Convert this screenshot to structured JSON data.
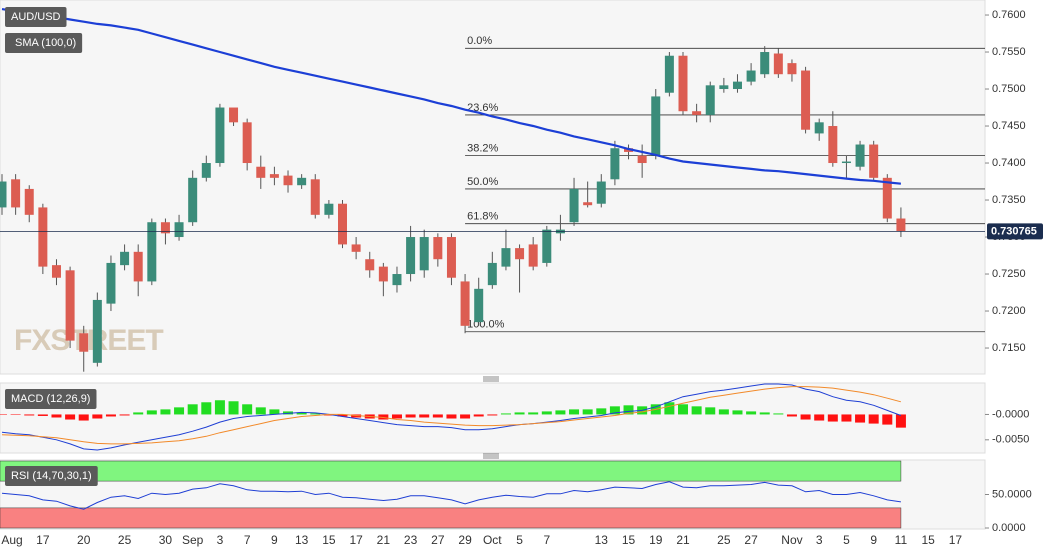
{
  "chart_data": [
    {
      "type": "candlestick",
      "title": "AUD/USD",
      "watermark": "FXSTREET",
      "up_color": "#3b8c7a",
      "down_color": "#dc5d52",
      "categories": [
        "Aug",
        null,
        null,
        "17",
        null,
        null,
        "20",
        null,
        null,
        "25",
        null,
        null,
        "30",
        null,
        "Sep",
        null,
        "3",
        null,
        "7",
        null,
        "9",
        null,
        "13",
        null,
        "15",
        null,
        "17",
        null,
        "21",
        null,
        "23",
        null,
        "27",
        null,
        "29",
        null,
        "Oct",
        null,
        "5",
        null,
        "7",
        null,
        null,
        null,
        "13",
        null,
        "15",
        null,
        "19",
        null,
        "21",
        null,
        null,
        "25",
        null,
        "27",
        null,
        null,
        "Nov",
        null,
        "3",
        null,
        "5",
        null,
        "9",
        null,
        "11",
        null,
        "15",
        null,
        "17",
        null
      ],
      "open": [
        0.734,
        0.7378,
        0.7365,
        0.734,
        0.7262,
        0.7255,
        0.717,
        0.713,
        0.721,
        0.7262,
        0.728,
        0.724,
        0.732,
        0.73,
        0.732,
        0.738,
        0.74,
        0.7475,
        0.7455,
        0.7395,
        0.7385,
        0.7383,
        0.737,
        0.7378,
        0.733,
        0.7345,
        0.729,
        0.727,
        0.726,
        0.7235,
        0.725,
        0.7255,
        0.73,
        0.73,
        0.724,
        0.7185,
        0.7235,
        0.726,
        0.7285,
        0.729,
        0.7265,
        0.7305,
        0.732,
        0.7347,
        0.7345,
        0.7378,
        0.742,
        0.741,
        0.741,
        0.7495,
        0.7545,
        0.747,
        0.7465,
        0.75,
        0.75,
        0.751,
        0.752,
        0.7548,
        0.7535,
        0.7525,
        0.744,
        0.745,
        0.74,
        0.7395,
        0.7425,
        0.738,
        0.7325,
        null,
        null,
        null,
        null,
        null
      ],
      "high": [
        0.7385,
        0.7385,
        0.737,
        0.7345,
        0.727,
        0.726,
        0.718,
        0.7225,
        0.7275,
        0.729,
        0.729,
        0.7325,
        0.7325,
        0.733,
        0.739,
        0.741,
        0.748,
        0.747,
        0.746,
        0.741,
        0.7395,
        0.739,
        0.7385,
        0.7385,
        0.735,
        0.735,
        0.73,
        0.728,
        0.7265,
        0.726,
        0.7315,
        0.731,
        0.7305,
        0.7305,
        0.725,
        0.7245,
        0.728,
        0.731,
        0.729,
        0.73,
        0.7315,
        0.733,
        0.738,
        0.7375,
        0.7385,
        0.743,
        0.7425,
        0.7425,
        0.75,
        0.755,
        0.755,
        0.748,
        0.751,
        0.7515,
        0.752,
        0.7535,
        0.7558,
        0.7555,
        0.754,
        0.753,
        0.746,
        0.747,
        0.741,
        0.743,
        0.743,
        0.7385,
        0.734,
        null,
        null,
        null,
        null,
        null
      ],
      "low": [
        0.733,
        0.733,
        0.732,
        0.725,
        0.7235,
        0.715,
        0.7118,
        0.7125,
        0.72,
        0.7255,
        0.722,
        0.7235,
        0.729,
        0.7295,
        0.7315,
        0.7375,
        0.7395,
        0.745,
        0.739,
        0.7365,
        0.737,
        0.736,
        0.7365,
        0.7325,
        0.7325,
        0.7285,
        0.727,
        0.7245,
        0.722,
        0.7225,
        0.724,
        0.7245,
        0.726,
        0.7235,
        0.717,
        0.718,
        0.723,
        0.7255,
        0.7225,
        0.7255,
        0.726,
        0.7295,
        0.7315,
        0.734,
        0.734,
        0.737,
        0.7405,
        0.738,
        0.7405,
        0.749,
        0.7465,
        0.7455,
        0.7455,
        0.7495,
        0.7495,
        0.7505,
        0.7515,
        0.7515,
        0.751,
        0.744,
        0.743,
        0.7395,
        0.738,
        0.739,
        0.7375,
        0.732,
        0.73,
        null,
        null,
        null,
        null,
        null
      ],
      "close": [
        0.7375,
        0.734,
        0.733,
        0.726,
        0.7245,
        0.716,
        0.7145,
        0.7215,
        0.7265,
        0.728,
        0.724,
        0.732,
        0.7305,
        0.732,
        0.738,
        0.74,
        0.7475,
        0.7455,
        0.74,
        0.738,
        0.738,
        0.737,
        0.738,
        0.733,
        0.7345,
        0.729,
        0.728,
        0.7255,
        0.724,
        0.725,
        0.73,
        0.73,
        0.727,
        0.7245,
        0.718,
        0.723,
        0.7265,
        0.7285,
        0.727,
        0.726,
        0.731,
        0.731,
        0.7365,
        0.7343,
        0.7375,
        0.742,
        0.7415,
        0.74,
        0.749,
        0.7545,
        0.747,
        0.7465,
        0.7505,
        0.7505,
        0.751,
        0.7525,
        0.755,
        0.752,
        0.752,
        0.7445,
        0.7455,
        0.74,
        0.7402,
        0.7425,
        0.738,
        0.7325,
        0.730765,
        null,
        null,
        null,
        null,
        null
      ],
      "overlays": [
        {
          "name": "SMA (100,0)",
          "color": "#1c3fd6",
          "values": [
            0.7608,
            0.7605,
            0.7602,
            0.76,
            0.7597,
            0.7594,
            0.7591,
            0.7588,
            0.7586,
            0.7583,
            0.758,
            0.7575,
            0.757,
            0.7565,
            0.756,
            0.7555,
            0.755,
            0.7545,
            0.754,
            0.7535,
            0.753,
            0.7526,
            0.7522,
            0.7518,
            0.7514,
            0.751,
            0.7506,
            0.7502,
            0.7498,
            0.7494,
            0.749,
            0.7486,
            0.7481,
            0.7477,
            0.7472,
            0.7468,
            0.7463,
            0.7459,
            0.7454,
            0.745,
            0.7445,
            0.7441,
            0.7436,
            0.7432,
            0.7428,
            0.7424,
            0.7419,
            0.7415,
            0.7411,
            0.7406,
            0.7402,
            0.74,
            0.7398,
            0.7396,
            0.7394,
            0.7392,
            0.739,
            0.7389,
            0.7387,
            0.7385,
            0.7383,
            0.7381,
            0.7379,
            0.7377,
            0.7376,
            0.7374,
            0.7372,
            null,
            null,
            null,
            null,
            null
          ]
        }
      ],
      "levels": [
        {
          "label": "0.0%",
          "value": 0.7555
        },
        {
          "label": "23.6%",
          "value": 0.7465
        },
        {
          "label": "38.2%",
          "value": 0.741
        },
        {
          "label": "50.0%",
          "value": 0.7365
        },
        {
          "label": "61.8%",
          "value": 0.7318
        },
        {
          "label": "100.0%",
          "value": 0.7172
        }
      ],
      "ylim": [
        0.71149,
        0.76203
      ],
      "yticks": [
        {
          "value": 0.715,
          "label": "0.7150"
        },
        {
          "value": 0.72,
          "label": "0.7200"
        },
        {
          "value": 0.725,
          "label": "0.7250"
        },
        {
          "value": 0.73,
          "label": "0.7300"
        },
        {
          "value": 0.735,
          "label": "0.7350"
        },
        {
          "value": 0.74,
          "label": "0.7400"
        },
        {
          "value": 0.745,
          "label": "0.7450"
        },
        {
          "value": 0.75,
          "label": "0.7500"
        },
        {
          "value": 0.755,
          "label": "0.7550"
        },
        {
          "value": 0.76,
          "label": "0.7600"
        }
      ]
    },
    {
      "type": "macd",
      "title": "MACD (12,26,9)",
      "up_color": "#22dd22",
      "down_color": "#ff1111",
      "histogram": [
        -0.0001,
        -0.0001,
        -0.0002,
        -0.0003,
        -0.0006,
        -0.001,
        -0.0012,
        -0.0008,
        -0.0004,
        -0.0002,
        0.0004,
        0.0008,
        0.001,
        0.0014,
        0.002,
        0.0024,
        0.0028,
        0.0026,
        0.002,
        0.0014,
        0.001,
        0.0006,
        0.0004,
        0.0002,
        -0.0002,
        -0.0004,
        -0.0006,
        -0.0008,
        -0.001,
        -0.0008,
        -0.0006,
        -0.0006,
        -0.0006,
        -0.0008,
        -0.0008,
        -0.0004,
        -0.0002,
        0.0002,
        0.0004,
        0.0004,
        0.0006,
        0.0008,
        0.001,
        0.001,
        0.0012,
        0.0016,
        0.0018,
        0.0016,
        0.002,
        0.0024,
        0.002,
        0.0016,
        0.0014,
        0.001,
        0.0008,
        0.0006,
        0.0004,
        0.0002,
        -0.0004,
        -0.001,
        -0.0012,
        -0.0014,
        -0.0014,
        -0.0016,
        -0.0018,
        -0.002,
        -0.0026,
        null,
        null,
        null,
        null,
        null
      ],
      "lines": [
        {
          "color": "#1f3fd4",
          "values": [
            -0.0035,
            -0.0038,
            -0.004,
            -0.0045,
            -0.005,
            -0.0058,
            -0.0068,
            -0.007,
            -0.0066,
            -0.006,
            -0.0055,
            -0.005,
            -0.0045,
            -0.004,
            -0.0033,
            -0.0025,
            -0.0015,
            -0.0008,
            -0.0004,
            -0.0002,
            0.0,
            0.0002,
            0.0004,
            0.0003,
            0.0,
            -0.0004,
            -0.0008,
            -0.0012,
            -0.0016,
            -0.002,
            -0.0022,
            -0.0024,
            -0.0024,
            -0.0026,
            -0.003,
            -0.003,
            -0.0028,
            -0.0024,
            -0.002,
            -0.0018,
            -0.0015,
            -0.0012,
            -0.0008,
            -0.0005,
            -0.0002,
            0.0003,
            0.0006,
            0.0008,
            0.0015,
            0.0025,
            0.0035,
            0.004,
            0.0045,
            0.0048,
            0.0052,
            0.0056,
            0.006,
            0.006,
            0.0058,
            0.005,
            0.0045,
            0.0035,
            0.0028,
            0.0025,
            0.0018,
            0.0008,
            -0.0002,
            null,
            null,
            null,
            null,
            null
          ]
        },
        {
          "color": "#f28a2a",
          "values": [
            -0.004,
            -0.0041,
            -0.0042,
            -0.0044,
            -0.0046,
            -0.005,
            -0.0054,
            -0.0057,
            -0.0058,
            -0.0058,
            -0.0057,
            -0.0056,
            -0.0054,
            -0.0052,
            -0.0048,
            -0.0043,
            -0.0036,
            -0.003,
            -0.0024,
            -0.0018,
            -0.0012,
            -0.0008,
            -0.0004,
            -0.0002,
            0.0,
            0.0,
            -0.0002,
            -0.0004,
            -0.0006,
            -0.001,
            -0.0012,
            -0.0015,
            -0.0017,
            -0.0019,
            -0.0021,
            -0.0022,
            -0.0022,
            -0.0021,
            -0.002,
            -0.0018,
            -0.0016,
            -0.0014,
            -0.0011,
            -0.0008,
            -0.0005,
            -0.0002,
            0.0002,
            0.0005,
            0.001,
            0.0016,
            0.0022,
            0.0028,
            0.0034,
            0.0038,
            0.0042,
            0.0046,
            0.005,
            0.0053,
            0.0055,
            0.0055,
            0.0054,
            0.0052,
            0.0048,
            0.0044,
            0.0039,
            0.0032,
            0.0025,
            null,
            null,
            null,
            null,
            null
          ]
        }
      ],
      "ylim": [
        -0.0076,
        0.0062
      ],
      "yticks": [
        {
          "value": 0,
          "label": "-0.0000"
        },
        {
          "value": -0.005,
          "label": "-0.0050"
        }
      ]
    },
    {
      "type": "rsi",
      "title": "RSI (14,70,30,1)",
      "color": "#1f3fd4",
      "bands": [
        {
          "from": 70,
          "to": 100,
          "color": "#80f57f"
        },
        {
          "from": 0,
          "to": 30,
          "color": "#f98181"
        }
      ],
      "values": [
        52,
        50,
        48,
        42,
        40,
        33,
        28,
        38,
        46,
        48,
        44,
        52,
        50,
        52,
        58,
        60,
        66,
        63,
        57,
        55,
        55,
        54,
        55,
        50,
        52,
        46,
        45,
        43,
        41,
        43,
        48,
        48,
        45,
        42,
        36,
        42,
        46,
        49,
        47,
        46,
        51,
        51,
        56,
        54,
        57,
        61,
        60,
        59,
        65,
        69,
        61,
        60,
        63,
        63,
        64,
        65,
        68,
        64,
        63,
        54,
        56,
        50,
        50,
        53,
        48,
        42,
        39,
        null,
        null,
        null,
        null,
        null
      ],
      "ylim": [
        -1.5,
        101.5
      ],
      "yticks": [
        {
          "value": 50,
          "label": "50.0000"
        },
        {
          "value": 0,
          "label": "0.0000"
        }
      ]
    }
  ]
}
